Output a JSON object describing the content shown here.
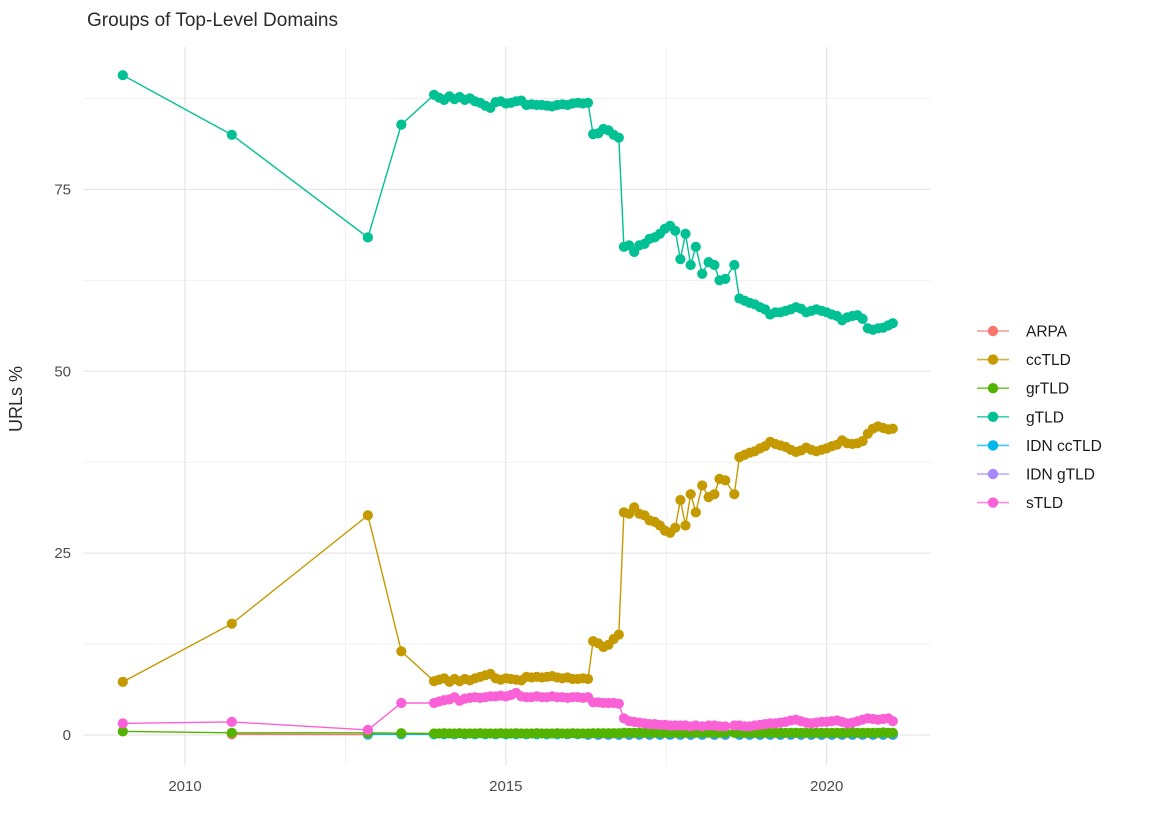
{
  "chart_data": {
    "type": "line",
    "title": "Groups of Top-Level Domains",
    "xlabel": "",
    "ylabel": "URLs %",
    "xticks": [
      2010,
      2015,
      2020
    ],
    "yticks": [
      0,
      25,
      50,
      75
    ],
    "xlim": [
      2008.4,
      2021.6
    ],
    "ylim": [
      -4,
      95
    ],
    "grid": "on",
    "legend_position": "right",
    "x_main": [
      2009.03,
      2010.73,
      2012.85,
      2013.37,
      2013.88,
      2013.96,
      2014.04,
      2014.12,
      2014.2,
      2014.28,
      2014.36,
      2014.44,
      2014.52,
      2014.6,
      2014.68,
      2014.76,
      2014.84,
      2014.92,
      2015.0,
      2015.08,
      2015.16,
      2015.24,
      2015.32,
      2015.4,
      2015.48,
      2015.56,
      2015.64,
      2015.72,
      2015.8,
      2015.88,
      2015.96,
      2016.04,
      2016.12,
      2016.2,
      2016.28,
      2016.36,
      2016.44,
      2016.52,
      2016.6,
      2016.68,
      2016.76,
      2016.84,
      2016.92,
      2017.0,
      2017.08,
      2017.16,
      2017.24,
      2017.32,
      2017.4,
      2017.48,
      2017.56,
      2017.64,
      2017.72,
      2017.8,
      2017.88,
      2017.96,
      2018.06,
      2018.16,
      2018.25,
      2018.33,
      2018.42,
      2018.56,
      2018.64,
      2018.72,
      2018.8,
      2018.88,
      2018.96,
      2019.04,
      2019.12,
      2019.2,
      2019.28,
      2019.36,
      2019.44,
      2019.52,
      2019.6,
      2019.68,
      2019.76,
      2019.84,
      2019.92,
      2020.0,
      2020.08,
      2020.16,
      2020.24,
      2020.32,
      2020.4,
      2020.48,
      2020.56,
      2020.64,
      2020.72,
      2020.8,
      2020.88,
      2020.96,
      2021.03
    ],
    "series": [
      {
        "name": "ARPA",
        "color": "#F8766D",
        "x": [
          2010.73,
          2012.85
        ],
        "y": [
          0.1,
          0.05
        ]
      },
      {
        "name": "ccTLD",
        "color": "#C49A00",
        "x_ref": "x_main",
        "y": [
          7.3,
          15.3,
          30.2,
          11.5,
          7.4,
          7.6,
          7.8,
          7.3,
          7.7,
          7.4,
          7.7,
          7.5,
          7.8,
          8.0,
          8.2,
          8.4,
          7.8,
          7.6,
          7.8,
          7.7,
          7.6,
          7.5,
          8.0,
          7.9,
          8.0,
          7.9,
          8.0,
          8.1,
          7.9,
          7.8,
          7.9,
          7.7,
          7.7,
          7.8,
          7.7,
          12.9,
          12.6,
          12.1,
          12.4,
          13.2,
          13.8,
          30.6,
          30.4,
          31.3,
          30.4,
          30.2,
          29.5,
          29.3,
          28.8,
          28.1,
          27.8,
          28.5,
          32.3,
          28.8,
          33.1,
          30.6,
          34.3,
          32.7,
          33.1,
          35.2,
          35.0,
          33.1,
          38.2,
          38.5,
          38.8,
          39.0,
          39.4,
          39.7,
          40.3,
          40.0,
          39.8,
          39.6,
          39.2,
          38.9,
          39.1,
          39.5,
          39.2,
          39.0,
          39.2,
          39.4,
          39.7,
          39.9,
          40.5,
          40.1,
          40.0,
          40.1,
          40.4,
          41.4,
          42.1,
          42.4,
          42.2,
          42.0,
          42.1
        ]
      },
      {
        "name": "grTLD",
        "color": "#53B400",
        "x_ref": "x_main",
        "y": [
          0.5,
          0.3,
          0.3,
          0.25,
          0.2,
          0.2,
          0.25,
          0.2,
          0.2,
          0.25,
          0.2,
          0.2,
          0.2,
          0.25,
          0.2,
          0.2,
          0.2,
          0.25,
          0.2,
          0.2,
          0.25,
          0.2,
          0.2,
          0.2,
          0.25,
          0.2,
          0.2,
          0.2,
          0.25,
          0.2,
          0.2,
          0.25,
          0.2,
          0.2,
          0.2,
          0.25,
          0.25,
          0.25,
          0.25,
          0.25,
          0.25,
          0.3,
          0.3,
          0.3,
          0.3,
          0.3,
          0.3,
          0.3,
          0.3,
          0.3,
          0.3,
          0.3,
          0.3,
          0.3,
          0.3,
          0.3,
          0.3,
          0.3,
          0.3,
          0.3,
          0.3,
          0.3,
          0.3,
          0.3,
          0.3,
          0.3,
          0.3,
          0.3,
          0.3,
          0.3,
          0.3,
          0.3,
          0.3,
          0.3,
          0.3,
          0.3,
          0.3,
          0.3,
          0.3,
          0.3,
          0.3,
          0.3,
          0.3,
          0.3,
          0.35,
          0.3,
          0.3,
          0.3,
          0.3,
          0.3,
          0.35,
          0.3,
          0.3
        ]
      },
      {
        "name": "gTLD",
        "color": "#00C094",
        "x_ref": "x_main",
        "y": [
          90.7,
          82.5,
          68.4,
          83.9,
          88.0,
          87.6,
          87.3,
          87.8,
          87.4,
          87.7,
          87.3,
          87.5,
          87.1,
          86.9,
          86.5,
          86.2,
          87.0,
          87.1,
          86.8,
          86.9,
          87.1,
          87.2,
          86.6,
          86.7,
          86.6,
          86.6,
          86.5,
          86.4,
          86.6,
          86.7,
          86.6,
          86.8,
          86.9,
          86.8,
          86.9,
          82.6,
          82.7,
          83.3,
          83.1,
          82.5,
          82.1,
          67.1,
          67.3,
          66.4,
          67.3,
          67.5,
          68.2,
          68.4,
          68.9,
          69.6,
          70.0,
          69.3,
          65.4,
          68.9,
          64.6,
          67.1,
          63.4,
          65.0,
          64.6,
          62.5,
          62.7,
          64.6,
          60.0,
          59.7,
          59.4,
          59.2,
          58.8,
          58.5,
          57.8,
          58.1,
          58.1,
          58.3,
          58.5,
          58.8,
          58.6,
          58.1,
          58.3,
          58.5,
          58.3,
          58.1,
          57.8,
          57.6,
          57.0,
          57.4,
          57.6,
          57.7,
          57.2,
          55.9,
          55.7,
          55.9,
          56.0,
          56.3,
          56.6
        ]
      },
      {
        "name": "IDN ccTLD",
        "color": "#00B6EB",
        "x": [
          2012.85,
          2013.37,
          2013.88,
          2014.04,
          2014.2,
          2014.36,
          2014.52,
          2014.68,
          2014.84,
          2015.0,
          2015.16,
          2015.32,
          2015.48,
          2015.64,
          2015.8,
          2015.96,
          2016.12,
          2016.28,
          2016.44,
          2016.6,
          2016.76,
          2016.92,
          2017.08,
          2017.24,
          2017.4,
          2017.56,
          2017.72,
          2017.88,
          2018.06,
          2018.25,
          2018.42,
          2018.64,
          2018.8,
          2018.96,
          2019.12,
          2019.28,
          2019.44,
          2019.6,
          2019.76,
          2019.92,
          2020.08,
          2020.24,
          2020.4,
          2020.56,
          2020.72,
          2020.88,
          2021.03
        ],
        "y": [
          0.1,
          0.1,
          0.1,
          0.1,
          0.1,
          0.1,
          0.1,
          0.1,
          0.1,
          0.1,
          0.1,
          0.1,
          0.1,
          0.1,
          0.1,
          0.1,
          0.1,
          0.1,
          0.1,
          0.1,
          0.1,
          0.1,
          0.1,
          0.1,
          0.1,
          0.1,
          0.1,
          0.1,
          0.1,
          0.1,
          0.1,
          0.1,
          0.1,
          0.1,
          0.1,
          0.1,
          0.1,
          0.1,
          0.1,
          0.1,
          0.1,
          0.1,
          0.1,
          0.1,
          0.1,
          0.1,
          0.1
        ]
      },
      {
        "name": "IDN gTLD",
        "color": "#A58AFF",
        "x": [
          2016.28,
          2016.44,
          2016.6,
          2016.76,
          2016.92,
          2017.08,
          2017.24,
          2017.4,
          2017.56,
          2017.72,
          2017.88,
          2018.06,
          2018.25,
          2018.42,
          2018.64,
          2018.8,
          2018.96,
          2019.12,
          2019.28,
          2019.44,
          2019.6,
          2019.76,
          2019.92,
          2020.08,
          2020.24,
          2020.4,
          2020.56,
          2020.72,
          2020.88,
          2021.03
        ],
        "y": [
          0.0,
          0.0,
          0.0,
          0.0,
          0.0,
          0.0,
          0.0,
          0.0,
          0.0,
          0.0,
          0.0,
          0.0,
          0.0,
          0.0,
          0.0,
          0.0,
          0.0,
          0.0,
          0.0,
          0.0,
          0.0,
          0.0,
          0.0,
          0.0,
          0.0,
          0.0,
          0.0,
          0.0,
          0.0,
          0.0
        ]
      },
      {
        "name": "sTLD",
        "color": "#FB61D7",
        "x_ref": "x_main",
        "y": [
          1.6,
          1.8,
          0.7,
          4.4,
          4.4,
          4.6,
          4.8,
          4.9,
          5.2,
          4.7,
          5.0,
          5.1,
          5.2,
          5.1,
          5.2,
          5.3,
          5.3,
          5.4,
          5.3,
          5.5,
          5.8,
          5.3,
          5.2,
          5.2,
          5.3,
          5.2,
          5.2,
          5.3,
          5.2,
          5.2,
          5.1,
          5.2,
          5.2,
          5.1,
          5.2,
          4.5,
          4.5,
          4.4,
          4.4,
          4.4,
          4.3,
          2.3,
          1.9,
          1.8,
          1.7,
          1.6,
          1.5,
          1.5,
          1.4,
          1.4,
          1.3,
          1.3,
          1.3,
          1.3,
          1.2,
          1.3,
          1.2,
          1.3,
          1.3,
          1.2,
          1.2,
          1.3,
          1.3,
          1.2,
          1.2,
          1.3,
          1.4,
          1.5,
          1.6,
          1.6,
          1.7,
          1.8,
          2.0,
          2.1,
          1.9,
          1.7,
          1.6,
          1.7,
          1.8,
          1.8,
          1.9,
          2.0,
          1.8,
          1.6,
          1.7,
          1.9,
          2.1,
          2.3,
          2.2,
          2.1,
          2.2,
          2.3,
          1.9
        ]
      }
    ]
  }
}
